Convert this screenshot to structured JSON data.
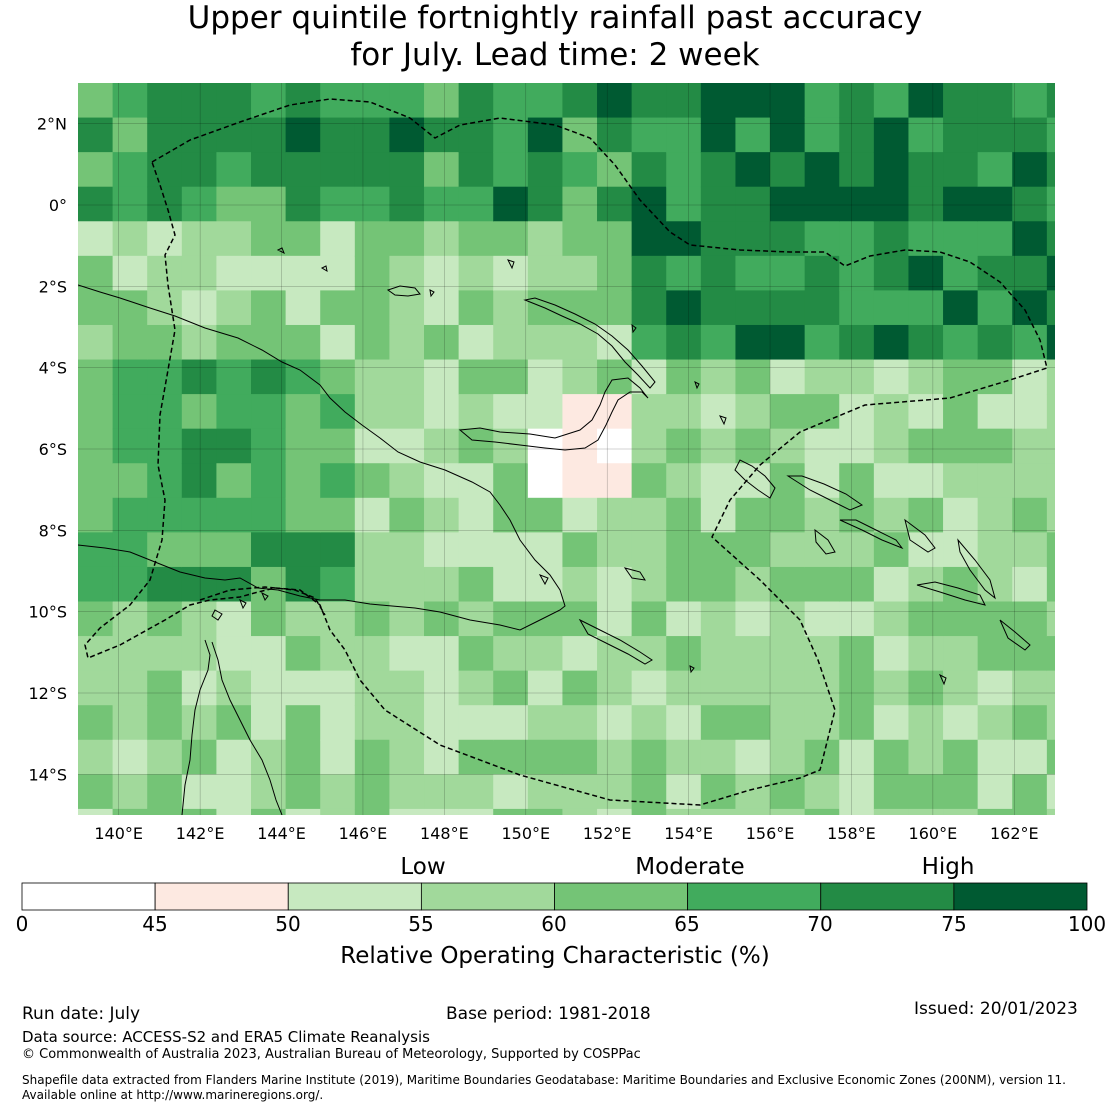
{
  "title": {
    "line1": "Upper quintile fortnightly rainfall past accuracy",
    "line2": "for July. Lead time: 2 week"
  },
  "map": {
    "lon_range": [
      139,
      163
    ],
    "lat_range": [
      -15,
      3
    ],
    "lon_ticks": [
      "140°E",
      "142°E",
      "144°E",
      "146°E",
      "148°E",
      "150°E",
      "152°E",
      "154°E",
      "156°E",
      "158°E",
      "160°E",
      "162°E"
    ],
    "lat_ticks": [
      "2°N",
      "0°",
      "2°S",
      "4°S",
      "6°S",
      "8°S",
      "10°S",
      "12°S",
      "14°S"
    ],
    "grid": true,
    "eez_boundary_style": "dashed black",
    "coastline_style": "thin black"
  },
  "colorbar": {
    "categories": [
      "Low",
      "Moderate",
      "High"
    ],
    "ticks": [
      "0",
      "45",
      "50",
      "55",
      "60",
      "65",
      "70",
      "75",
      "100"
    ],
    "bins": [
      {
        "range": "0-45",
        "color": "#ffffff"
      },
      {
        "range": "45-50",
        "color": "#fde9e1"
      },
      {
        "range": "50-55",
        "color": "#c7e9c0"
      },
      {
        "range": "55-60",
        "color": "#a1d99b"
      },
      {
        "range": "60-65",
        "color": "#74c476"
      },
      {
        "range": "65-70",
        "color": "#41ab5d"
      },
      {
        "range": "70-75",
        "color": "#238b45"
      },
      {
        "range": "75-100",
        "color": "#005a32"
      }
    ],
    "label": "Relative Operating Characteristic (%)"
  },
  "footer": {
    "run_date": "Run date: July",
    "base_period": "Base period: 1981-2018",
    "issued": "Issued: 20/01/2023",
    "data_source": "Data source: ACCESS-S2 and ERA5 Climate Reanalysis",
    "copyright": "© Commonwealth of Australia 2023, Australian Bureau of Meteorology, Supported by COSPPac",
    "shapefile_line1": "Shapefile data extracted from Flanders Marine Institute (2019), Maritime Boundaries Geodatabase: Maritime Boundaries and Exclusive Economic Zones (200NM), version 11.",
    "shapefile_line2": "Available online at http://www.marineregions.org/."
  }
}
